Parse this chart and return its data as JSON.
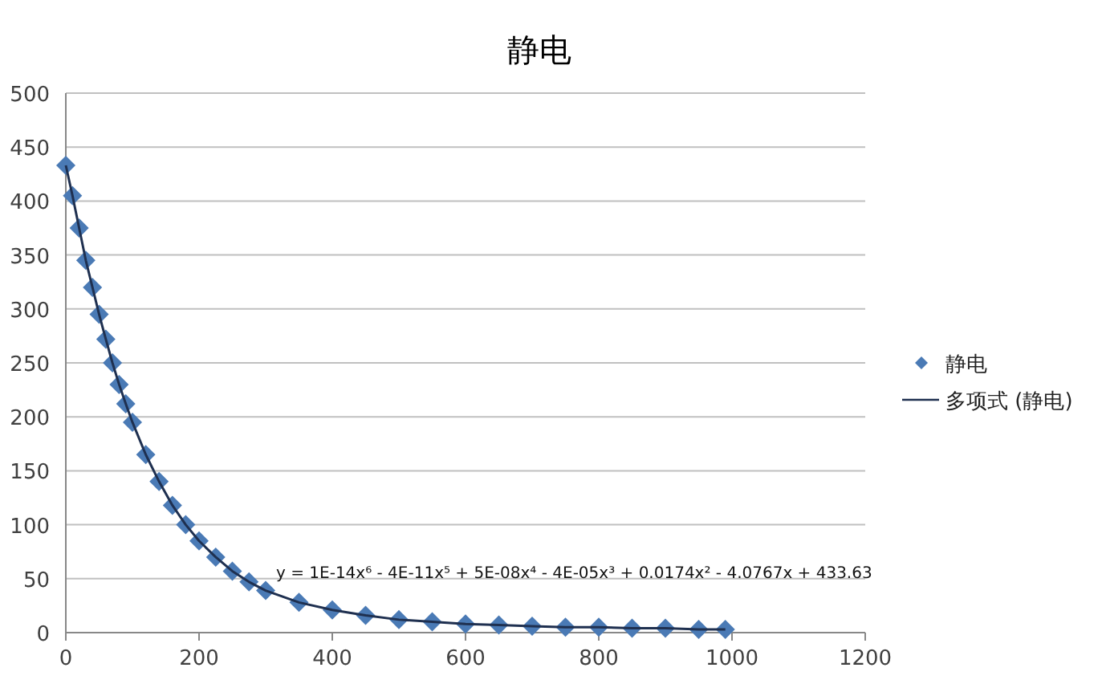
{
  "chart_data": {
    "type": "scatter",
    "title": "静电",
    "x": [
      0,
      10,
      20,
      30,
      40,
      50,
      60,
      70,
      80,
      90,
      100,
      120,
      140,
      160,
      180,
      200,
      225,
      250,
      275,
      300,
      350,
      400,
      450,
      500,
      550,
      600,
      650,
      700,
      750,
      800,
      850,
      900,
      950,
      990
    ],
    "series": [
      {
        "name": "静电",
        "type": "scatter",
        "color": "#4a7ab5",
        "marker": "diamond",
        "values": [
          433,
          405,
          375,
          345,
          320,
          295,
          272,
          250,
          230,
          212,
          195,
          165,
          140,
          118,
          100,
          85,
          70,
          57,
          47,
          39,
          28,
          21,
          16,
          12,
          10,
          8,
          7,
          6,
          5,
          5,
          4,
          4,
          3,
          3
        ]
      },
      {
        "name": "多项式 (静电)",
        "type": "line",
        "color": "#1f3050",
        "line_style": "solid",
        "marker": "none",
        "values": [
          433,
          405,
          375,
          345,
          320,
          295,
          272,
          250,
          230,
          212,
          195,
          165,
          140,
          118,
          100,
          85,
          70,
          57,
          47,
          39,
          28,
          21,
          16,
          12,
          10,
          8,
          7,
          6,
          5,
          5,
          4,
          4,
          3,
          3
        ]
      }
    ],
    "annotations": [
      "y = 1E-14x⁶ - 4E-11x⁵ + 5E-08x⁴ - 4E-05x³ + 0.0174x² - 4.0767x + 433.63"
    ],
    "xlim": [
      0,
      1200
    ],
    "xticks": [
      0,
      200,
      400,
      600,
      800,
      1000,
      1200
    ],
    "ylim": [
      0,
      500
    ],
    "yticks": [
      0,
      50,
      100,
      150,
      200,
      250,
      300,
      350,
      400,
      450,
      500
    ],
    "grid": "y",
    "legend": "right"
  }
}
